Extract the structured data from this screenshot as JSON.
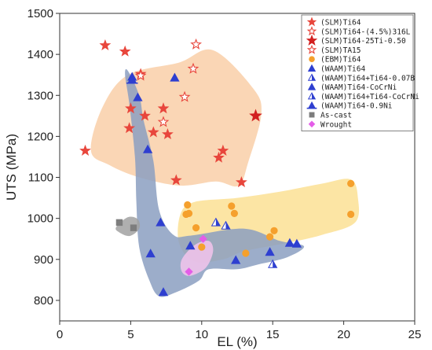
{
  "chart_data": {
    "type": "scatter",
    "xlabel": "EL (%)",
    "ylabel": "UTS (MPa)",
    "xlim": [
      0,
      25
    ],
    "ylim": [
      750,
      1500
    ],
    "xticks": [
      0,
      5,
      10,
      15,
      20,
      25
    ],
    "yticks": [
      800,
      900,
      1000,
      1100,
      1200,
      1300,
      1400,
      1500
    ],
    "grid": false,
    "legend_position": "top-right",
    "regions": [
      {
        "color": "#f9cfa8",
        "points": [
          [
            2.2,
            1165
          ],
          [
            3.0,
            1270
          ],
          [
            4.8,
            1350
          ],
          [
            8.4,
            1380
          ],
          [
            10.8,
            1410
          ],
          [
            13.6,
            1318
          ],
          [
            14.2,
            1255
          ],
          [
            13.3,
            1140
          ],
          [
            12.6,
            1080
          ],
          [
            11.0,
            1090
          ],
          [
            8.5,
            1080
          ],
          [
            5.6,
            1100
          ],
          [
            3.5,
            1130
          ]
        ]
      },
      {
        "color": "#fbe194",
        "points": [
          [
            8.5,
            1010
          ],
          [
            9.5,
            1040
          ],
          [
            12.5,
            1050
          ],
          [
            15.5,
            1065
          ],
          [
            18.5,
            1085
          ],
          [
            20.5,
            1095
          ],
          [
            21.0,
            1050
          ],
          [
            20.8,
            990
          ],
          [
            18.5,
            960
          ],
          [
            16.0,
            940
          ],
          [
            13.0,
            920
          ],
          [
            11.5,
            900
          ],
          [
            9.5,
            895
          ],
          [
            8.4,
            940
          ]
        ]
      },
      {
        "color": "#8b9fc1",
        "points": [
          [
            4.8,
            1360
          ],
          [
            5.6,
            1300
          ],
          [
            5.9,
            1240
          ],
          [
            6.6,
            1140
          ],
          [
            7.0,
            1020
          ],
          [
            8.0,
            960
          ],
          [
            9.2,
            958
          ],
          [
            13.0,
            975
          ],
          [
            15.5,
            945
          ],
          [
            17.2,
            932
          ],
          [
            16.0,
            905
          ],
          [
            14.0,
            888
          ],
          [
            12.5,
            876
          ],
          [
            10.5,
            876
          ],
          [
            9.8,
            848
          ],
          [
            8.2,
            820
          ],
          [
            7.0,
            810
          ],
          [
            6.3,
            850
          ],
          [
            5.6,
            930
          ],
          [
            5.4,
            1040
          ],
          [
            5.3,
            1150
          ],
          [
            4.9,
            1280
          ],
          [
            4.6,
            1350
          ]
        ]
      },
      {
        "color": "#a1a1a1",
        "points": [
          [
            4.0,
            980
          ],
          [
            4.8,
            1003
          ],
          [
            5.5,
            998
          ],
          [
            5.6,
            975
          ],
          [
            4.9,
            957
          ],
          [
            4.1,
            968
          ]
        ]
      },
      {
        "color": "#f3c4ec",
        "points": [
          [
            8.6,
            900
          ],
          [
            9.5,
            935
          ],
          [
            10.5,
            945
          ],
          [
            10.8,
            920
          ],
          [
            10.3,
            880
          ],
          [
            9.2,
            860
          ],
          [
            8.6,
            870
          ]
        ]
      }
    ],
    "series": [
      {
        "name": "(SLM)Ti64",
        "marker": "star",
        "color": "#e8463c",
        "filled": true,
        "points": [
          [
            1.8,
            1165
          ],
          [
            3.2,
            1422
          ],
          [
            4.6,
            1407
          ],
          [
            4.9,
            1220
          ],
          [
            5.0,
            1268
          ],
          [
            5.7,
            1352
          ],
          [
            6.0,
            1250
          ],
          [
            6.6,
            1210
          ],
          [
            7.3,
            1268
          ],
          [
            7.6,
            1205
          ],
          [
            8.2,
            1093
          ],
          [
            11.2,
            1148
          ],
          [
            11.5,
            1165
          ],
          [
            12.8,
            1088
          ],
          [
            13.8,
            1250
          ]
        ]
      },
      {
        "name": "(SLM)Ti64-(4.5%)316L",
        "marker": "star",
        "color": "#e8463c",
        "filled": false,
        "points": [
          [
            5.7,
            1348
          ],
          [
            9.4,
            1365
          ],
          [
            9.6,
            1424
          ]
        ]
      },
      {
        "name": "(SLM)Ti64-25Ti-0.50",
        "marker": "star-bold",
        "color": "#d22020",
        "filled": true,
        "points": [
          [
            13.8,
            1250
          ]
        ]
      },
      {
        "name": "(SLM)TA15",
        "marker": "star",
        "color": "#e8463c",
        "filled": false,
        "points": [
          [
            7.3,
            1235
          ],
          [
            8.8,
            1296
          ]
        ]
      },
      {
        "name": "(EBM)Ti64",
        "marker": "circle",
        "color": "#f5a02d",
        "filled": true,
        "points": [
          [
            8.9,
            1010
          ],
          [
            9.0,
            1033
          ],
          [
            9.1,
            1012
          ],
          [
            9.6,
            977
          ],
          [
            10.0,
            930
          ],
          [
            12.1,
            1030
          ],
          [
            12.3,
            1012
          ],
          [
            13.1,
            915
          ],
          [
            14.8,
            955
          ],
          [
            15.1,
            970
          ],
          [
            20.5,
            1085
          ],
          [
            20.5,
            1010
          ]
        ]
      },
      {
        "name": "(WAAM)Ti64",
        "marker": "triangle",
        "color": "#2e3fd0",
        "filled": true,
        "points": [
          [
            5.1,
            1345
          ],
          [
            5.5,
            1295
          ],
          [
            6.2,
            1168
          ],
          [
            7.1,
            990
          ],
          [
            7.3,
            820
          ],
          [
            8.1,
            1343
          ],
          [
            9.2,
            933
          ],
          [
            14.8,
            918
          ],
          [
            16.2,
            940
          ],
          [
            16.7,
            938
          ],
          [
            6.4,
            914
          ]
        ]
      },
      {
        "name": "(WAAM)Ti64+Ti64-0.07B",
        "marker": "triangle-half",
        "color": "#2e3fd0",
        "filled": false,
        "points": [
          [
            11.0,
            990
          ],
          [
            11.7,
            982
          ]
        ]
      },
      {
        "name": "(WAAM)Ti64-CoCrNi",
        "marker": "triangle",
        "color": "#2e3fd0",
        "filled": true,
        "points": [
          [
            12.4,
            898
          ]
        ]
      },
      {
        "name": "(WAAM)Ti64+Ti64-CoCrNi",
        "marker": "triangle-half",
        "color": "#2e3fd0",
        "filled": false,
        "points": [
          [
            15.0,
            888
          ]
        ]
      },
      {
        "name": "(WAAM)Ti64-0.9Ni",
        "marker": "triangle-bar",
        "color": "#2e3fd0",
        "filled": true,
        "points": [
          [
            5.1,
            1338
          ]
        ]
      },
      {
        "name": "As-cast",
        "marker": "square",
        "color": "#7d7d7d",
        "filled": true,
        "points": [
          [
            4.2,
            990
          ],
          [
            5.2,
            977
          ]
        ]
      },
      {
        "name": "Wrought",
        "marker": "diamond",
        "color": "#e45de8",
        "filled": true,
        "points": [
          [
            9.1,
            870
          ],
          [
            10.1,
            950
          ]
        ]
      }
    ]
  }
}
